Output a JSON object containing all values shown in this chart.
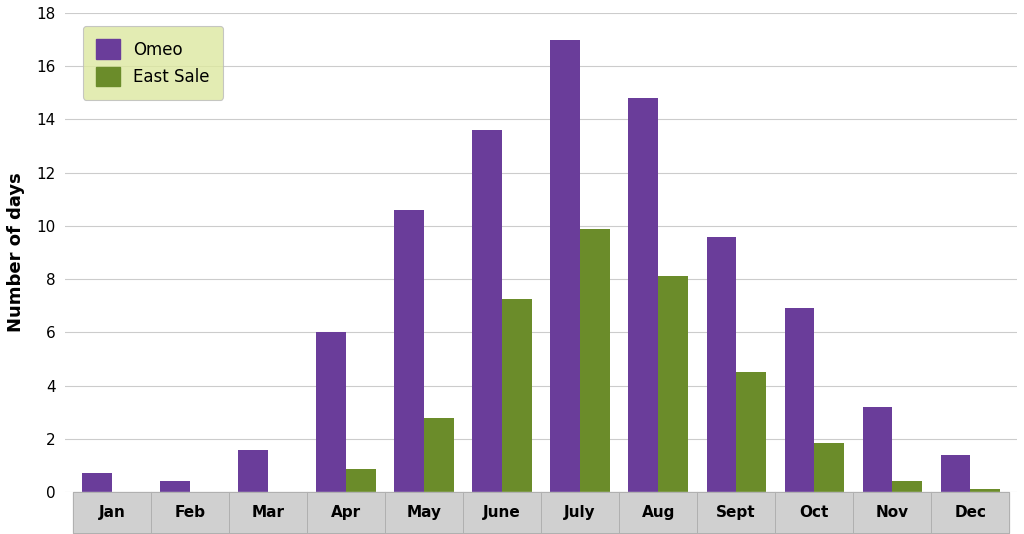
{
  "categories": [
    "Jan",
    "Feb",
    "Mar",
    "Apr",
    "May",
    "June",
    "July",
    "Aug",
    "Sept",
    "Oct",
    "Nov",
    "Dec"
  ],
  "omeo": [
    0.7,
    0.4,
    1.6,
    6.0,
    10.6,
    13.6,
    17.0,
    14.8,
    9.6,
    6.9,
    3.2,
    1.4
  ],
  "east_sale": [
    0.0,
    0.0,
    0.0,
    0.85,
    2.8,
    7.25,
    9.9,
    8.1,
    4.5,
    1.85,
    0.4,
    0.1
  ],
  "omeo_color": "#6A3D9A",
  "east_sale_color": "#6B8C2A",
  "bar_width": 0.38,
  "ylim": [
    0,
    18
  ],
  "yticks": [
    0,
    2,
    4,
    6,
    8,
    10,
    12,
    14,
    16,
    18
  ],
  "ylabel": "Number of days",
  "legend_labels": [
    "Omeo",
    "East Sale"
  ],
  "legend_bg": "#dde8a0",
  "plot_bg": "#ffffff",
  "grid_color": "#cccccc",
  "xtick_bg": "#d0d0d0",
  "xtick_border": "#b0b0b0"
}
